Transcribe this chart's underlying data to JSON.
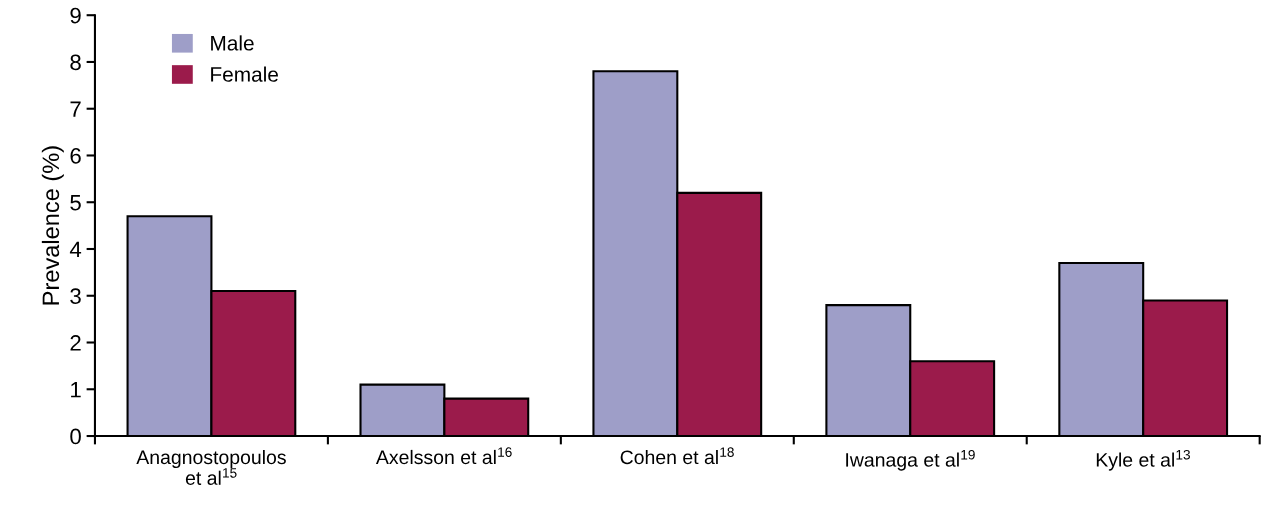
{
  "chart_data": {
    "type": "bar",
    "ylabel": "Prevalence (%)",
    "categories": [
      "Anagnostopoulos\net al$^{15}$",
      "Axelsson et al$^{16}$",
      "Cohen et al$^{18}$",
      "Iwanaga et al$^{19}$",
      "Kyle et al$^{13}$"
    ],
    "series": [
      {
        "name": "Male",
        "color": "#9e9ec8",
        "values": [
          4.7,
          1.1,
          7.8,
          2.8,
          3.7
        ]
      },
      {
        "name": "Female",
        "color": "#9b1b4b",
        "values": [
          3.1,
          0.8,
          5.2,
          1.6,
          2.9
        ]
      }
    ],
    "ylim": [
      0,
      9
    ],
    "yticks": [
      0,
      1,
      2,
      3,
      4,
      5,
      6,
      7,
      8,
      9
    ],
    "grid": false,
    "legend": "top left"
  }
}
